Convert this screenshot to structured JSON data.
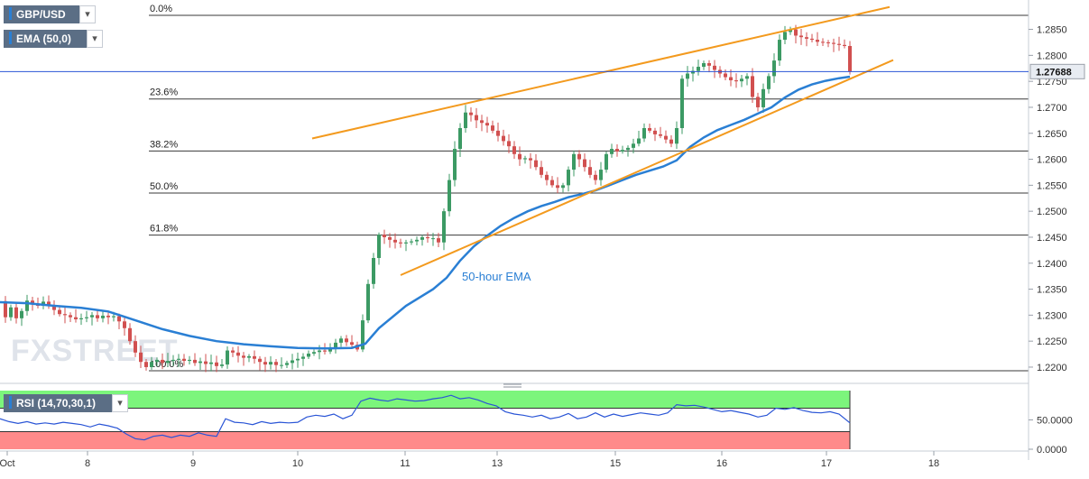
{
  "instrument_label": "GBP/USD",
  "indicator_label": "EMA (50,0)",
  "rsi_label": "RSI (14,70,30,1)",
  "watermark": "FXSTREET",
  "ema_annotation": "50-hour EMA",
  "current_price": "1.27688",
  "colors": {
    "up": "#3c9a64",
    "down": "#d15050",
    "ema": "#2a7fd4",
    "trendline": "#f39a1e",
    "rsi_overbought_zone": "#7cf57c",
    "rsi_oversold_zone": "#ff8a8a",
    "rsi_line": "#2a55d6",
    "price_tag": "#e8ecf2"
  },
  "chart_data": [
    {
      "type": "candlestick",
      "title": "GBP/USD",
      "ylim": [
        1.2185,
        1.2905
      ],
      "y_ticks": [
        "1.2200",
        "1.2250",
        "1.2300",
        "1.2350",
        "1.2400",
        "1.2450",
        "1.2500",
        "1.2550",
        "1.2600",
        "1.2650",
        "1.2700",
        "1.2750",
        "1.2800",
        "1.2850"
      ],
      "x_ticks": [
        "Oct",
        "8",
        "9",
        "10",
        "11",
        "13",
        "15",
        "16",
        "17",
        "18"
      ],
      "fibonacci_levels": [
        {
          "label": "0.0%",
          "price": 1.2877
        },
        {
          "label": "23.6%",
          "price": 1.2716
        },
        {
          "label": "38.2%",
          "price": 1.2616
        },
        {
          "label": "50.0%",
          "price": 1.2535
        },
        {
          "label": "61.8%",
          "price": 1.2454
        },
        {
          "label": "100.0%",
          "price": 1.2193
        }
      ],
      "last_price": 1.27688,
      "ohlc_path": [
        [
          0,
          1.2327
        ],
        [
          6,
          1.2296
        ],
        [
          12,
          1.2315
        ],
        [
          18,
          1.2294
        ],
        [
          24,
          1.2308
        ],
        [
          30,
          1.2328
        ],
        [
          36,
          1.2322
        ],
        [
          42,
          1.2318
        ],
        [
          48,
          1.2326
        ],
        [
          54,
          1.2318
        ],
        [
          60,
          1.231
        ],
        [
          66,
          1.2302
        ],
        [
          72,
          1.23
        ],
        [
          78,
          1.2296
        ],
        [
          84,
          1.2292
        ],
        [
          90,
          1.2294
        ],
        [
          96,
          1.2296
        ],
        [
          102,
          1.23
        ],
        [
          108,
          1.2294
        ],
        [
          114,
          1.2299
        ],
        [
          120,
          1.2296
        ],
        [
          126,
          1.2298
        ],
        [
          132,
          1.2288
        ],
        [
          138,
          1.2275
        ],
        [
          144,
          1.225
        ],
        [
          150,
          1.2228
        ],
        [
          156,
          1.221
        ],
        [
          162,
          1.22
        ],
        [
          168,
          1.221
        ],
        [
          174,
          1.2214
        ],
        [
          180,
          1.2208
        ],
        [
          186,
          1.2212
        ],
        [
          192,
          1.2214
        ],
        [
          198,
          1.2216
        ],
        [
          204,
          1.2212
        ],
        [
          210,
          1.2214
        ],
        [
          216,
          1.2208
        ],
        [
          222,
          1.2211
        ],
        [
          228,
          1.2206
        ],
        [
          234,
          1.2209
        ],
        [
          240,
          1.2202
        ],
        [
          246,
          1.2205
        ],
        [
          252,
          1.2232
        ],
        [
          258,
          1.2228
        ],
        [
          264,
          1.2222
        ],
        [
          270,
          1.2218
        ],
        [
          276,
          1.2221
        ],
        [
          282,
          1.2216
        ],
        [
          288,
          1.221
        ],
        [
          294,
          1.2205
        ],
        [
          300,
          1.221
        ],
        [
          306,
          1.2204
        ],
        [
          312,
          1.2204
        ],
        [
          318,
          1.2208
        ],
        [
          324,
          1.2213
        ],
        [
          330,
          1.2216
        ],
        [
          336,
          1.222
        ],
        [
          342,
          1.2226
        ],
        [
          348,
          1.2229
        ],
        [
          354,
          1.2232
        ],
        [
          360,
          1.223
        ],
        [
          366,
          1.2236
        ],
        [
          372,
          1.2247
        ],
        [
          378,
          1.2255
        ],
        [
          384,
          1.2248
        ],
        [
          390,
          1.2243
        ],
        [
          396,
          1.2234
        ],
        [
          402,
          1.229
        ],
        [
          408,
          1.236
        ],
        [
          414,
          1.241
        ],
        [
          420,
          1.2455
        ],
        [
          426,
          1.245
        ],
        [
          432,
          1.2445
        ],
        [
          438,
          1.244
        ],
        [
          444,
          1.2438
        ],
        [
          450,
          1.244
        ],
        [
          456,
          1.2442
        ],
        [
          462,
          1.2445
        ],
        [
          468,
          1.245
        ],
        [
          474,
          1.2448
        ],
        [
          480,
          1.2448
        ],
        [
          486,
          1.244
        ],
        [
          492,
          1.25
        ],
        [
          498,
          1.256
        ],
        [
          504,
          1.262
        ],
        [
          510,
          1.266
        ],
        [
          516,
          1.269
        ],
        [
          522,
          1.2685
        ],
        [
          528,
          1.2675
        ],
        [
          534,
          1.267
        ],
        [
          540,
          1.2665
        ],
        [
          546,
          1.2655
        ],
        [
          552,
          1.2645
        ],
        [
          558,
          1.2635
        ],
        [
          564,
          1.2625
        ],
        [
          570,
          1.261
        ],
        [
          576,
          1.26
        ],
        [
          582,
          1.2602
        ],
        [
          588,
          1.2598
        ],
        [
          594,
          1.2585
        ],
        [
          600,
          1.257
        ],
        [
          606,
          1.256
        ],
        [
          612,
          1.255
        ],
        [
          618,
          1.2545
        ],
        [
          624,
          1.255
        ],
        [
          630,
          1.258
        ],
        [
          636,
          1.261
        ],
        [
          642,
          1.26
        ],
        [
          648,
          1.2585
        ],
        [
          654,
          1.257
        ],
        [
          660,
          1.256
        ],
        [
          666,
          1.258
        ],
        [
          672,
          1.261
        ],
        [
          678,
          1.262
        ],
        [
          684,
          1.2615
        ],
        [
          690,
          1.2618
        ],
        [
          696,
          1.2622
        ],
        [
          702,
          1.263
        ],
        [
          708,
          1.264
        ],
        [
          714,
          1.266
        ],
        [
          720,
          1.2655
        ],
        [
          726,
          1.2648
        ],
        [
          732,
          1.2645
        ],
        [
          738,
          1.2638
        ],
        [
          744,
          1.263
        ],
        [
          750,
          1.266
        ],
        [
          756,
          1.2755
        ],
        [
          762,
          1.2765
        ],
        [
          768,
          1.277
        ],
        [
          774,
          1.2778
        ],
        [
          780,
          1.2785
        ],
        [
          786,
          1.278
        ],
        [
          792,
          1.2772
        ],
        [
          798,
          1.2765
        ],
        [
          804,
          1.2758
        ],
        [
          810,
          1.2752
        ],
        [
          816,
          1.275
        ],
        [
          822,
          1.2755
        ],
        [
          828,
          1.276
        ],
        [
          834,
          1.272
        ],
        [
          840,
          1.27
        ],
        [
          846,
          1.2735
        ],
        [
          852,
          1.276
        ],
        [
          858,
          1.279
        ],
        [
          864,
          1.283
        ],
        [
          870,
          1.2845
        ],
        [
          876,
          1.285
        ],
        [
          882,
          1.2838
        ],
        [
          888,
          1.2835
        ],
        [
          894,
          1.2832
        ],
        [
          900,
          1.283
        ],
        [
          906,
          1.2826
        ],
        [
          912,
          1.2825
        ],
        [
          918,
          1.2824
        ],
        [
          924,
          1.2822
        ],
        [
          930,
          1.282
        ],
        [
          936,
          1.2818
        ],
        [
          942,
          1.2769
        ]
      ],
      "ema_50": [
        [
          0,
          1.2325
        ],
        [
          30,
          1.2323
        ],
        [
          60,
          1.2318
        ],
        [
          90,
          1.2314
        ],
        [
          120,
          1.2307
        ],
        [
          150,
          1.229
        ],
        [
          180,
          1.2273
        ],
        [
          210,
          1.226
        ],
        [
          240,
          1.225
        ],
        [
          270,
          1.2244
        ],
        [
          300,
          1.224
        ],
        [
          330,
          1.2237
        ],
        [
          360,
          1.2236
        ],
        [
          390,
          1.2237
        ],
        [
          405,
          1.2245
        ],
        [
          420,
          1.2275
        ],
        [
          450,
          1.2318
        ],
        [
          480,
          1.235
        ],
        [
          495,
          1.2372
        ],
        [
          510,
          1.2405
        ],
        [
          525,
          1.2432
        ],
        [
          540,
          1.2453
        ],
        [
          555,
          1.2472
        ],
        [
          570,
          1.2487
        ],
        [
          585,
          1.25
        ],
        [
          600,
          1.251
        ],
        [
          615,
          1.2518
        ],
        [
          630,
          1.2527
        ],
        [
          645,
          1.2533
        ],
        [
          660,
          1.254
        ],
        [
          675,
          1.255
        ],
        [
          690,
          1.256
        ],
        [
          705,
          1.257
        ],
        [
          720,
          1.2578
        ],
        [
          735,
          1.2586
        ],
        [
          750,
          1.2598
        ],
        [
          765,
          1.2624
        ],
        [
          780,
          1.2642
        ],
        [
          795,
          1.2656
        ],
        [
          810,
          1.2666
        ],
        [
          825,
          1.2676
        ],
        [
          840,
          1.2688
        ],
        [
          855,
          1.27
        ],
        [
          870,
          1.2719
        ],
        [
          885,
          1.2734
        ],
        [
          900,
          1.2744
        ],
        [
          915,
          1.2751
        ],
        [
          930,
          1.2756
        ],
        [
          942,
          1.2759
        ]
      ],
      "trendlines": [
        {
          "from": [
            346,
            1.264
          ],
          "to": [
            986,
            1.2893
          ]
        },
        {
          "from": [
            444,
            1.2377
          ],
          "to": [
            990,
            1.2791
          ]
        }
      ]
    },
    {
      "type": "line",
      "title": "RSI (14,70,30,1)",
      "ylim": [
        0,
        100
      ],
      "y_ticks": [
        "0.0000",
        "50.0000"
      ],
      "zones": {
        "overbought": 70,
        "oversold": 30
      },
      "values": [
        [
          0,
          52
        ],
        [
          10,
          47
        ],
        [
          20,
          44
        ],
        [
          30,
          47
        ],
        [
          40,
          43
        ],
        [
          50,
          45
        ],
        [
          60,
          43
        ],
        [
          70,
          46
        ],
        [
          80,
          44
        ],
        [
          90,
          42
        ],
        [
          100,
          38
        ],
        [
          110,
          43
        ],
        [
          120,
          40
        ],
        [
          130,
          36
        ],
        [
          140,
          26
        ],
        [
          150,
          18
        ],
        [
          160,
          16
        ],
        [
          170,
          22
        ],
        [
          180,
          24
        ],
        [
          190,
          20
        ],
        [
          200,
          24
        ],
        [
          210,
          22
        ],
        [
          220,
          28
        ],
        [
          230,
          24
        ],
        [
          240,
          22
        ],
        [
          250,
          52
        ],
        [
          260,
          46
        ],
        [
          270,
          45
        ],
        [
          280,
          42
        ],
        [
          290,
          47
        ],
        [
          300,
          44
        ],
        [
          310,
          46
        ],
        [
          320,
          45
        ],
        [
          330,
          46
        ],
        [
          340,
          55
        ],
        [
          350,
          58
        ],
        [
          360,
          56
        ],
        [
          370,
          60
        ],
        [
          380,
          52
        ],
        [
          390,
          58
        ],
        [
          400,
          82
        ],
        [
          410,
          87
        ],
        [
          420,
          84
        ],
        [
          430,
          82
        ],
        [
          440,
          86
        ],
        [
          450,
          84
        ],
        [
          460,
          82
        ],
        [
          470,
          83
        ],
        [
          480,
          86
        ],
        [
          490,
          88
        ],
        [
          500,
          92
        ],
        [
          510,
          86
        ],
        [
          520,
          88
        ],
        [
          530,
          84
        ],
        [
          540,
          78
        ],
        [
          550,
          74
        ],
        [
          560,
          64
        ],
        [
          570,
          60
        ],
        [
          580,
          58
        ],
        [
          590,
          55
        ],
        [
          600,
          58
        ],
        [
          610,
          52
        ],
        [
          620,
          55
        ],
        [
          630,
          61
        ],
        [
          640,
          52
        ],
        [
          650,
          55
        ],
        [
          660,
          62
        ],
        [
          670,
          55
        ],
        [
          680,
          60
        ],
        [
          690,
          56
        ],
        [
          700,
          59
        ],
        [
          710,
          62
        ],
        [
          720,
          60
        ],
        [
          730,
          58
        ],
        [
          740,
          62
        ],
        [
          750,
          76
        ],
        [
          760,
          74
        ],
        [
          770,
          75
        ],
        [
          780,
          72
        ],
        [
          790,
          68
        ],
        [
          800,
          64
        ],
        [
          810,
          66
        ],
        [
          820,
          63
        ],
        [
          830,
          60
        ],
        [
          840,
          55
        ],
        [
          850,
          58
        ],
        [
          860,
          70
        ],
        [
          870,
          68
        ],
        [
          880,
          71
        ],
        [
          890,
          66
        ],
        [
          900,
          63
        ],
        [
          910,
          62
        ],
        [
          920,
          64
        ],
        [
          930,
          60
        ],
        [
          942,
          45
        ]
      ]
    }
  ]
}
